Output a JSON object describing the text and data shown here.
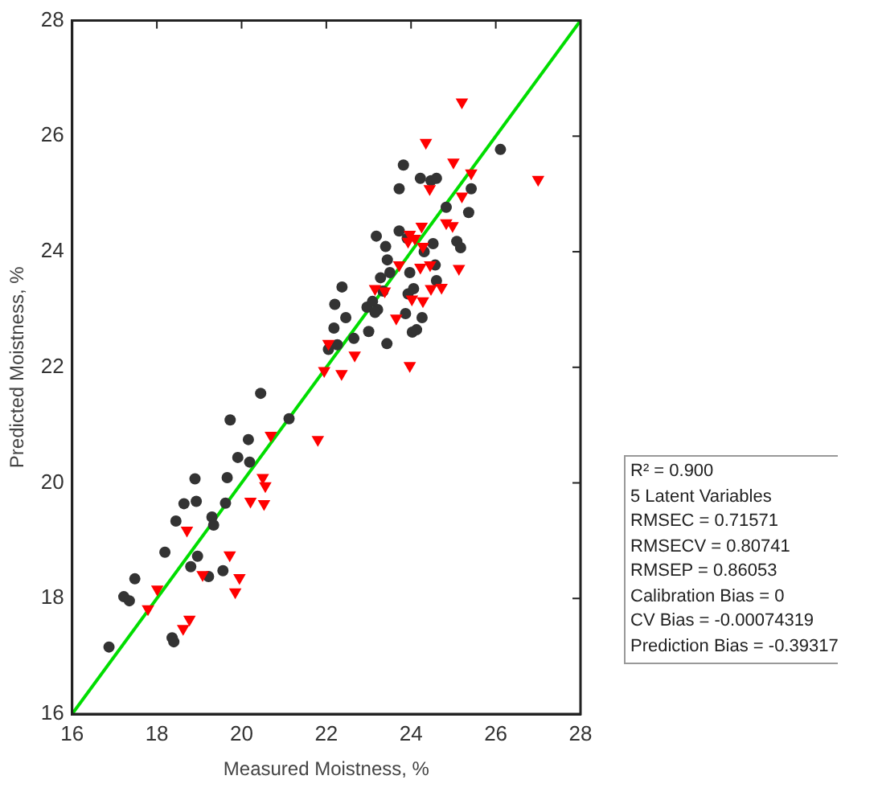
{
  "chart_data": {
    "type": "scatter",
    "xlabel": "Measured Moistness, %",
    "ylabel": "Predicted Moistness, %",
    "xlim": [
      16,
      28
    ],
    "ylim": [
      16,
      28
    ],
    "xticks": [
      16,
      18,
      20,
      22,
      24,
      26,
      28
    ],
    "yticks": [
      16,
      18,
      20,
      22,
      24,
      26,
      28
    ],
    "grid": false,
    "legend": false,
    "series": [
      {
        "color": "#333333",
        "marker": "circle",
        "x": [
          16.87,
          17.22,
          17.35,
          17.48,
          18.19,
          18.36,
          18.4,
          18.45,
          18.64,
          18.8,
          18.9,
          18.93,
          18.96,
          19.22,
          19.3,
          19.34,
          19.56,
          19.62,
          19.66,
          19.73,
          19.91,
          20.16,
          20.19,
          20.45,
          21.12,
          22.05,
          22.2,
          22.18,
          22.26,
          22.37,
          22.46,
          22.65,
          22.96,
          23.0,
          23.18,
          23.09,
          23.21,
          23.28,
          23.34,
          23.4,
          23.44,
          23.43,
          23.5,
          23.72,
          23.72,
          23.82,
          23.91,
          23.87,
          23.93,
          23.97,
          24.03,
          24.06,
          24.13,
          24.22,
          24.26,
          24.31,
          24.47,
          24.52,
          24.57,
          24.6,
          24.6,
          24.83,
          25.08,
          25.17,
          25.36,
          25.42,
          26.11,
          23.15
        ],
        "values": [
          17.16,
          18.03,
          17.96,
          18.34,
          18.8,
          17.32,
          17.25,
          19.34,
          19.64,
          18.55,
          20.07,
          19.68,
          18.73,
          18.38,
          19.41,
          19.27,
          18.48,
          19.65,
          20.09,
          21.09,
          20.44,
          20.75,
          20.36,
          21.55,
          21.11,
          22.31,
          23.09,
          22.68,
          22.39,
          23.39,
          22.86,
          22.5,
          23.04,
          22.62,
          24.27,
          23.14,
          23.0,
          23.55,
          23.32,
          24.09,
          23.86,
          22.41,
          23.64,
          25.09,
          24.36,
          25.5,
          24.23,
          22.93,
          23.27,
          23.64,
          22.61,
          23.36,
          22.65,
          25.27,
          22.86,
          24.0,
          25.23,
          24.14,
          23.77,
          25.27,
          23.5,
          24.77,
          24.18,
          24.07,
          24.68,
          25.09,
          25.77,
          22.95
        ]
      },
      {
        "color": "#ff0000",
        "marker": "triangle",
        "x": [
          17.79,
          18.01,
          18.62,
          18.77,
          18.71,
          19.08,
          19.72,
          19.95,
          19.85,
          20.21,
          20.5,
          20.56,
          20.53,
          20.69,
          21.8,
          21.95,
          22.05,
          22.36,
          22.67,
          23.15,
          23.38,
          23.65,
          23.72,
          23.93,
          23.97,
          24.02,
          23.97,
          24.22,
          24.25,
          24.28,
          24.28,
          24.35,
          24.44,
          24.45,
          24.47,
          24.72,
          24.83,
          24.98,
          25.0,
          25.13,
          25.2,
          25.2,
          25.42,
          27.0,
          24.09
        ],
        "values": [
          17.82,
          18.16,
          17.48,
          17.64,
          19.18,
          18.41,
          18.75,
          18.36,
          18.11,
          19.68,
          20.09,
          19.95,
          19.64,
          20.82,
          20.75,
          21.94,
          22.41,
          21.89,
          22.21,
          23.36,
          23.32,
          22.85,
          23.77,
          24.18,
          24.3,
          23.18,
          22.03,
          23.73,
          24.44,
          24.09,
          23.15,
          25.89,
          25.09,
          23.77,
          23.36,
          23.38,
          24.5,
          24.45,
          25.55,
          23.71,
          24.96,
          26.59,
          25.36,
          25.25,
          24.23
        ]
      },
      {
        "type": "line",
        "color": "#00dd00",
        "marker": "none",
        "x": [
          16,
          28
        ],
        "values": [
          16,
          28
        ]
      }
    ],
    "annotations": [
      "R² = 0.900",
      "5 Latent Variables",
      "RMSEC = 0.71571",
      "RMSECV = 0.80741",
      "RMSEP = 0.86053",
      "Calibration Bias = 0",
      "CV Bias = -0.00074319",
      "Prediction Bias = -0.39317"
    ]
  }
}
